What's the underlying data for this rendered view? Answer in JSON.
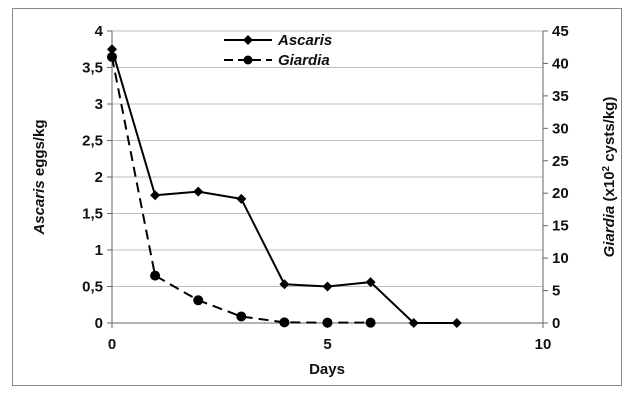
{
  "chart_data": {
    "type": "line",
    "xlabel": "Days",
    "ylabel_left": {
      "italic": "Ascaris",
      "rest": " eggs/kg"
    },
    "ylabel_right": {
      "italic": "Giardia",
      "rest_pre": " (x10",
      "sup": "2",
      "rest_post": " cysts/kg)"
    },
    "xlim": [
      0,
      10
    ],
    "x_ticks": [
      "0",
      "5",
      "10"
    ],
    "y_left_lim": [
      0,
      4
    ],
    "y_left_ticks": [
      "0",
      "0,5",
      "1",
      "1,5",
      "2",
      "2,5",
      "3",
      "3,5",
      "4"
    ],
    "y_right_lim": [
      0,
      45
    ],
    "y_right_ticks": [
      "0",
      "5",
      "10",
      "15",
      "20",
      "25",
      "30",
      "35",
      "40",
      "45"
    ],
    "grid": "horizontal",
    "legend_position": "top-center",
    "series": [
      {
        "name": "Ascaris",
        "axis": "left",
        "style": "solid",
        "marker": "diamond",
        "color": "#000000",
        "x": [
          0,
          1,
          2,
          3,
          4,
          5,
          6,
          7,
          8
        ],
        "y": [
          3.75,
          1.75,
          1.8,
          1.7,
          0.53,
          0.5,
          0.56,
          0.0,
          0.0
        ]
      },
      {
        "name": "Giardia",
        "axis": "right",
        "style": "dashed",
        "marker": "circle",
        "color": "#000000",
        "x": [
          0,
          1,
          2,
          3,
          4,
          5,
          6
        ],
        "y": [
          41,
          7.3,
          3.5,
          1.0,
          0.1,
          0.05,
          0.05
        ]
      }
    ]
  }
}
